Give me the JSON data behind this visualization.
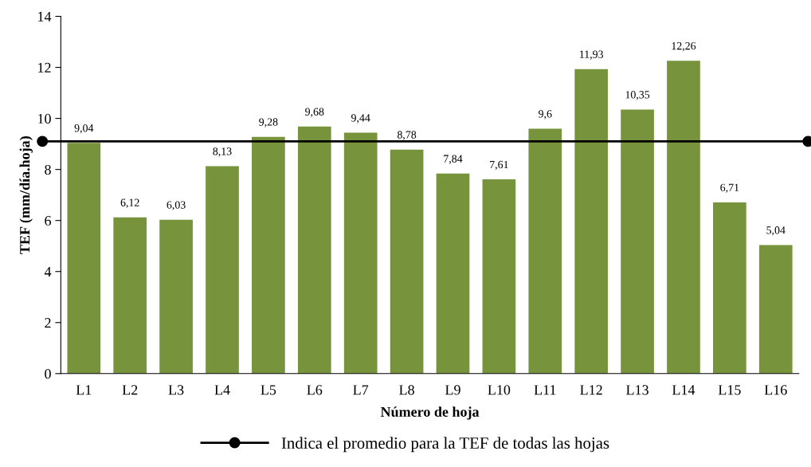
{
  "chart_data": {
    "type": "bar",
    "xlabel": "Número de hoja",
    "ylabel": "TEF (mm/día.hoja)",
    "categories": [
      "L1",
      "L2",
      "L3",
      "L4",
      "L5",
      "L6",
      "L7",
      "L8",
      "L9",
      "L10",
      "L11",
      "L12",
      "L13",
      "L14",
      "L15",
      "L16"
    ],
    "values": [
      9.04,
      6.12,
      6.03,
      8.13,
      9.28,
      9.68,
      9.44,
      8.78,
      7.84,
      7.61,
      9.6,
      11.93,
      10.35,
      12.26,
      6.71,
      5.04
    ],
    "value_labels": [
      "9,04",
      "6,12",
      "6,03",
      "8,13",
      "9,28",
      "9,68",
      "9,44",
      "8,78",
      "7,84",
      "7,61",
      "9,6",
      "11,93",
      "10,35",
      "12,26",
      "6,71",
      "5,04"
    ],
    "color": "#77933c",
    "ylim": [
      0,
      14
    ],
    "yticks": [
      0,
      2,
      4,
      6,
      8,
      10,
      12,
      14
    ],
    "grid": false,
    "legend": "bottom",
    "ref_lines": [
      {
        "axis": "y",
        "value": 9.1,
        "label": "Indica el promedio para la TEF de todas las hojas",
        "color": "#000000",
        "line_style": "solid"
      }
    ]
  }
}
